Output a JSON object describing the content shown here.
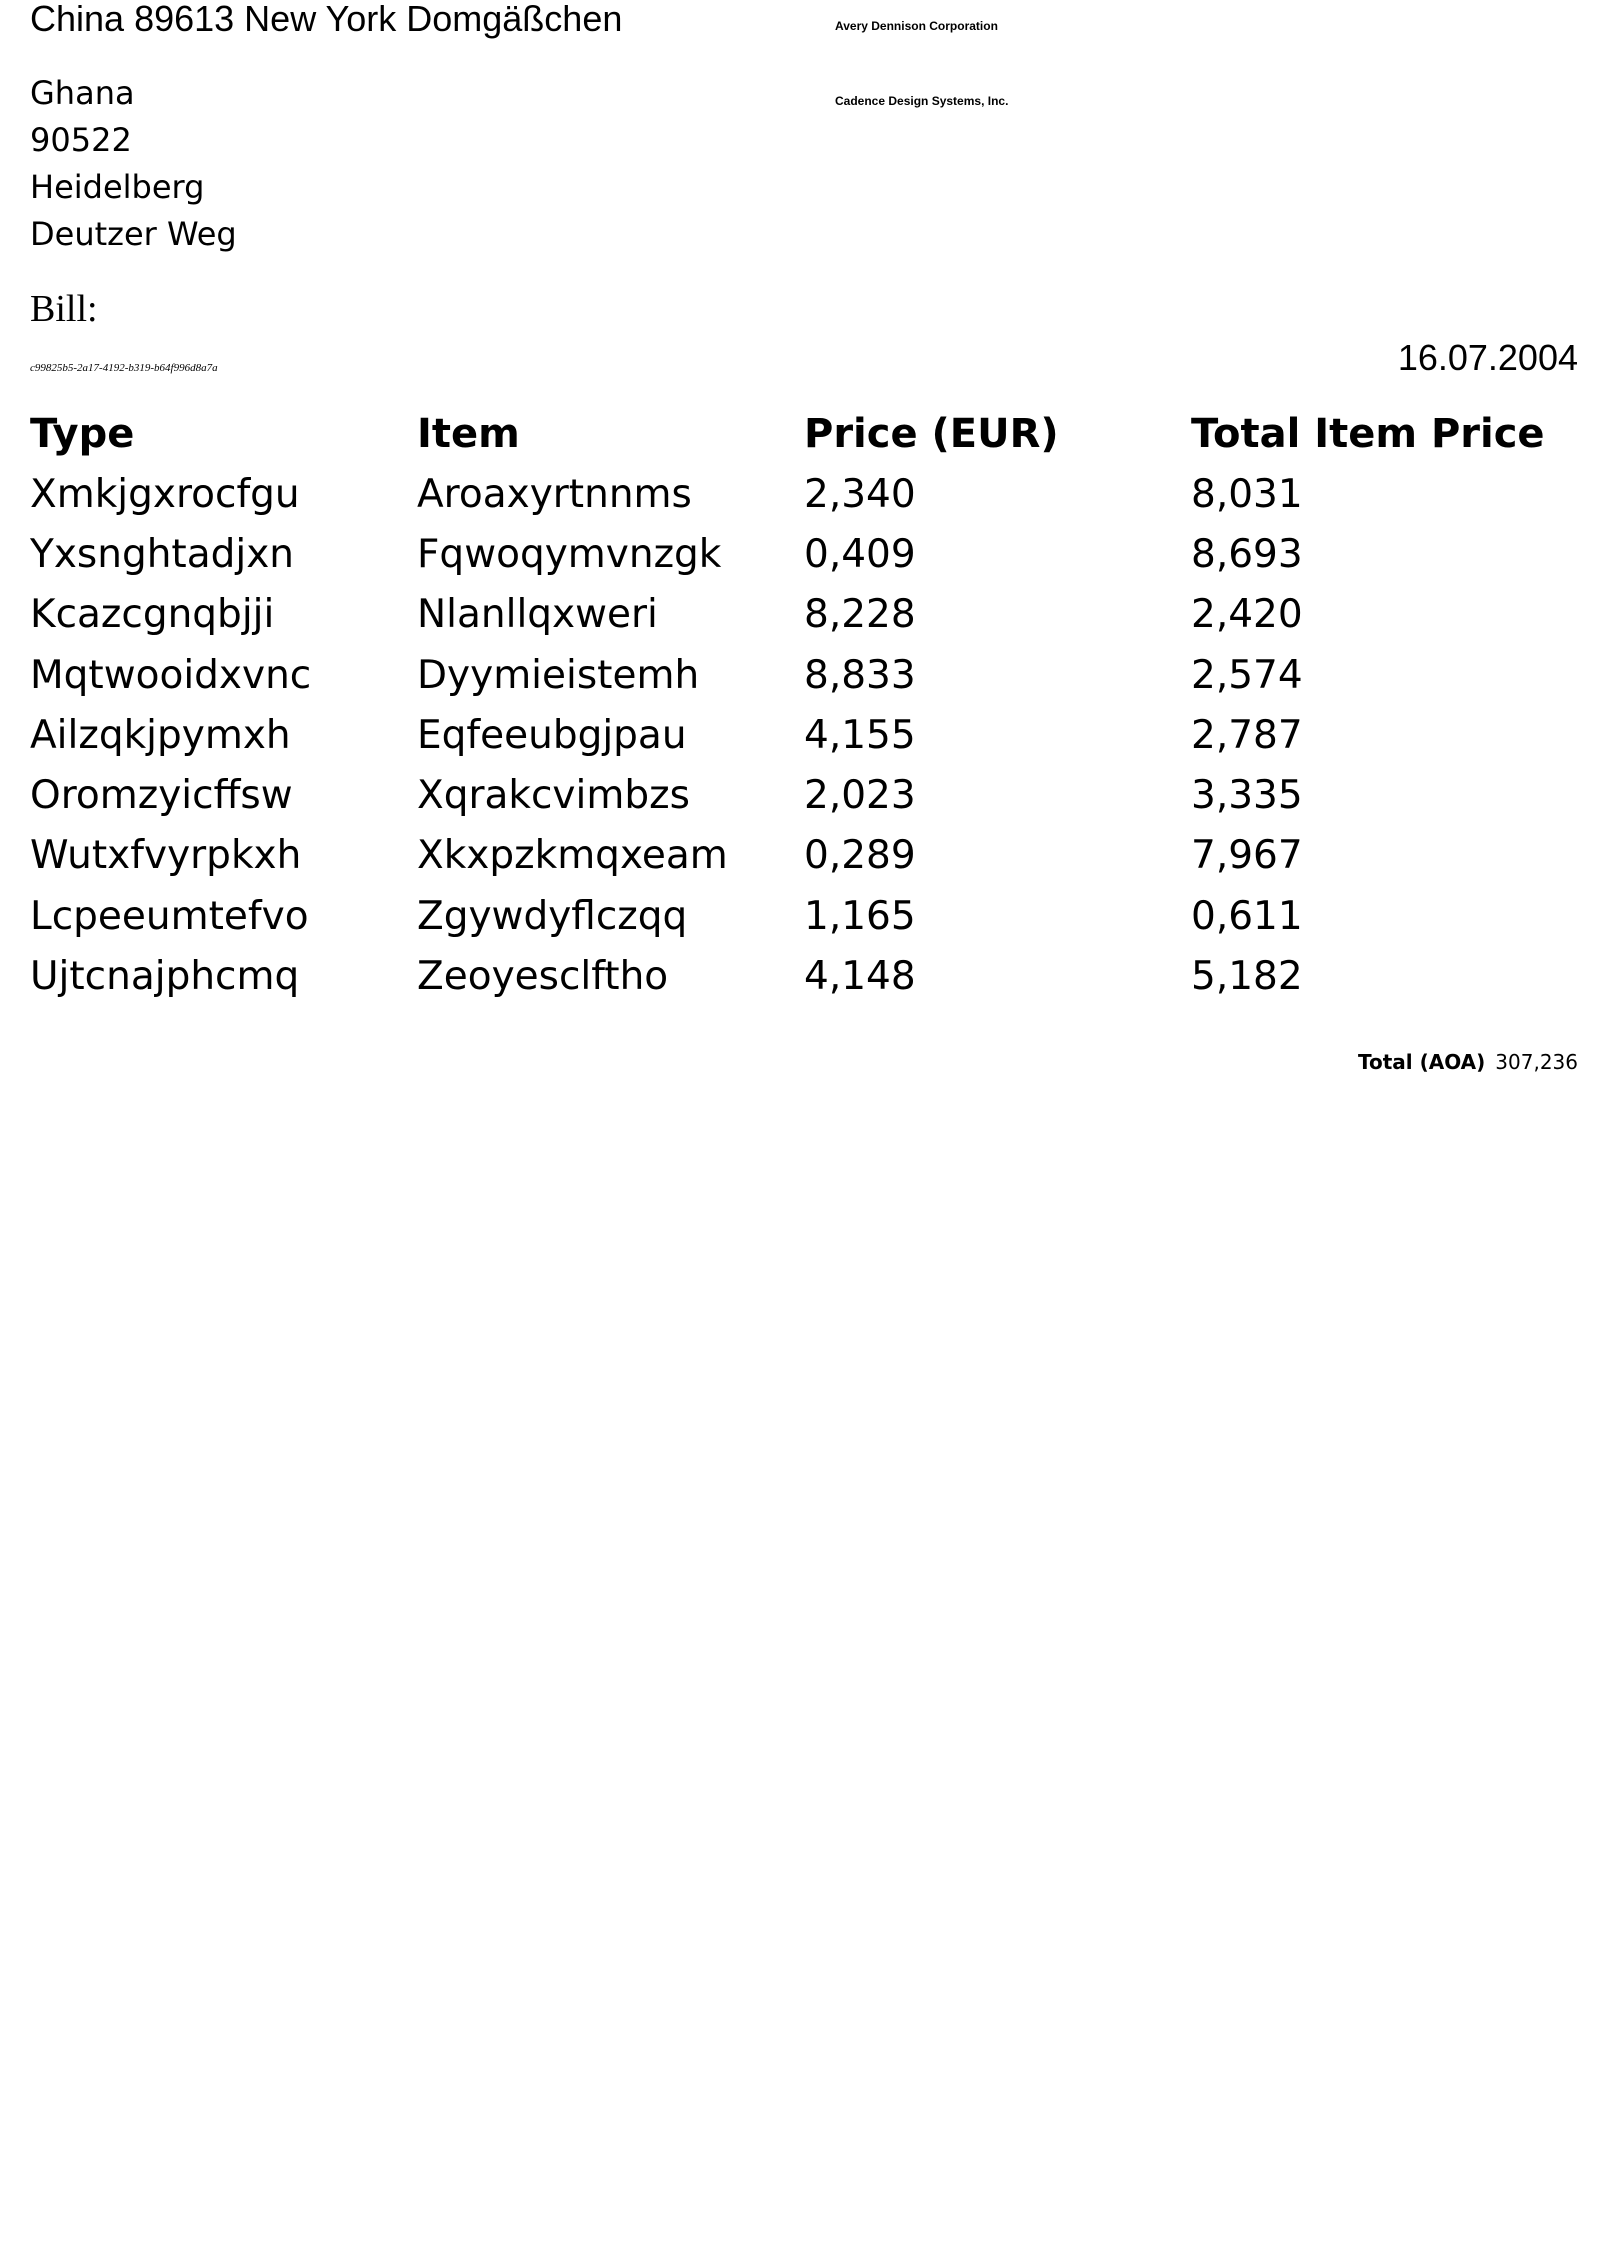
{
  "sender": {
    "line": "China 89613 New York Domgäßchen"
  },
  "companies": [
    "Avery Dennison Corporation",
    "Cadence Design Systems, Inc."
  ],
  "recipient": {
    "country": "Ghana",
    "postal_code": "90522",
    "city": "Heidelberg",
    "street": "Deutzer Weg"
  },
  "bill": {
    "label": "Bill:",
    "id": "c99825b5-2a17-4192-b319-b64f996d8a7a",
    "date": "16.07.2004"
  },
  "table": {
    "headers": [
      "Type",
      "Item",
      "Price (EUR)",
      "Total Item Price"
    ],
    "rows": [
      [
        "Xmkjgxrocfgu",
        "Aroaxyrtnnms",
        "2,340",
        "8,031"
      ],
      [
        "Yxsnghtadjxn",
        "Fqwoqymvnzgk",
        "0,409",
        "8,693"
      ],
      [
        "Kcazcgnqbjji",
        "Nlanllqxweri",
        "8,228",
        "2,420"
      ],
      [
        "Mqtwooidxvnc",
        "Dyymieistemh",
        "8,833",
        "2,574"
      ],
      [
        "Ailzqkjpymxh",
        "Eqfeeubgjpau",
        "4,155",
        "2,787"
      ],
      [
        "Oromzyicffsw",
        "Xqrakcvimbzs",
        "2,023",
        "3,335"
      ],
      [
        "Wutxfvyrpkxh",
        "Xkxpzkmqxeam",
        "0,289",
        "7,967"
      ],
      [
        "Lcpeeumtefvo",
        "Zgywdyflczqq",
        "1,165",
        "0,611"
      ],
      [
        "Ujtcnajphcmq",
        "Zeoyesclftho",
        "4,148",
        "5,182"
      ]
    ]
  },
  "total": {
    "label": "Total (AOA)",
    "value": "307,236"
  }
}
